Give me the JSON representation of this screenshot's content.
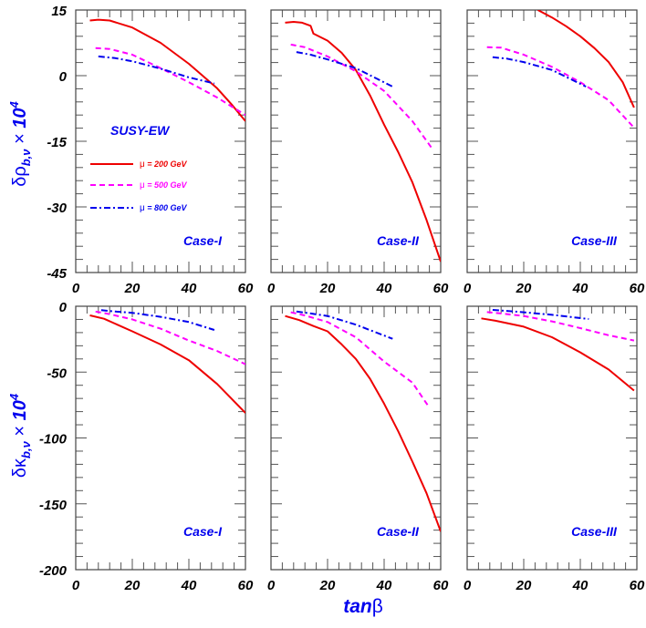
{
  "xlabel": {
    "main": "tan",
    "greek": "β"
  },
  "annotation": "SUSY-EW",
  "legend": [
    {
      "label_greek": "μ",
      "label": " = 200 GeV",
      "color": "#ee0000",
      "style": "solid"
    },
    {
      "label_greek": "μ",
      "label": " = 500 GeV",
      "color": "#ff00ff",
      "style": "dashed"
    },
    {
      "label_greek": "μ",
      "label": " = 800 GeV",
      "color": "#0000ee",
      "style": "dashdot"
    }
  ],
  "ylabels": [
    {
      "sym": "δρ",
      "sub": "b,ν",
      "times": " × ",
      "pow": "10",
      "exp": "4"
    },
    {
      "sym": "δκ",
      "sub": "b,ν",
      "times": " × ",
      "pow": "10",
      "exp": "4"
    }
  ],
  "chart_data": [
    {
      "type": "line",
      "title": "Case-I",
      "row": 0,
      "col": 0,
      "xlim": [
        0,
        60
      ],
      "ylim": [
        -45,
        15
      ],
      "xticks": [
        "0",
        "20",
        "40",
        "60"
      ],
      "yticks": [
        "15",
        "0",
        "-15",
        "-30",
        "-45"
      ],
      "series": [
        {
          "name": "μ = 200 GeV",
          "x": [
            5,
            8,
            12,
            20,
            30,
            40,
            50,
            55,
            60
          ],
          "y": [
            12.6,
            12.8,
            12.6,
            11.0,
            7.5,
            2.7,
            -2.9,
            -6.5,
            -10.4
          ]
        },
        {
          "name": "μ = 500 GeV",
          "x": [
            7,
            12,
            20,
            30,
            40,
            50,
            60
          ],
          "y": [
            6.3,
            6.1,
            4.8,
            1.7,
            -1.5,
            -5,
            -9
          ]
        },
        {
          "name": "μ = 800 GeV",
          "x": [
            8,
            14,
            20,
            30,
            40,
            49
          ],
          "y": [
            4.4,
            4.0,
            3.3,
            1.6,
            -0.4,
            -1.8
          ]
        }
      ]
    },
    {
      "type": "line",
      "title": "Case-II",
      "row": 0,
      "col": 1,
      "xlim": [
        0,
        60
      ],
      "ylim": [
        -45,
        15
      ],
      "xticks": [
        "0",
        "20",
        "40",
        "60"
      ],
      "yticks": [],
      "series": [
        {
          "name": "μ = 200 GeV",
          "x": [
            5,
            8,
            11,
            14,
            15,
            20,
            25,
            30,
            35,
            40,
            45,
            50,
            55,
            60
          ],
          "y": [
            12.1,
            12.3,
            12.1,
            11.4,
            9.6,
            8.0,
            5.2,
            1.3,
            -4.5,
            -11.2,
            -17.5,
            -24.4,
            -33,
            -42.5
          ]
        },
        {
          "name": "μ = 500 GeV",
          "x": [
            7,
            12,
            20,
            30,
            40,
            50,
            57
          ],
          "y": [
            7.1,
            6.5,
            4.4,
            1.0,
            -3.5,
            -10.4,
            -16.7
          ]
        },
        {
          "name": "μ = 800 GeV",
          "x": [
            9,
            14,
            20,
            30,
            43
          ],
          "y": [
            5.4,
            4.8,
            3.7,
            1.7,
            -2.5
          ]
        }
      ]
    },
    {
      "type": "line",
      "title": "Case-III",
      "row": 0,
      "col": 2,
      "xlim": [
        0,
        60
      ],
      "ylim": [
        -45,
        15
      ],
      "xticks": [
        "0",
        "20",
        "40",
        "60"
      ],
      "yticks": [],
      "series": [
        {
          "name": "μ = 200 GeV",
          "x": [
            25,
            30,
            35,
            40,
            45,
            50,
            55,
            59
          ],
          "y": [
            15,
            13.3,
            11.3,
            9.0,
            6.3,
            3.1,
            -1.5,
            -7.3
          ]
        },
        {
          "name": "μ = 500 GeV",
          "x": [
            7,
            12,
            20,
            30,
            40,
            50,
            59
          ],
          "y": [
            6.5,
            6.4,
            4.8,
            2.0,
            -1.5,
            -5.6,
            -11.9
          ]
        },
        {
          "name": "μ = 800 GeV",
          "x": [
            9,
            14,
            20,
            30,
            42
          ],
          "y": [
            4.2,
            3.9,
            3.1,
            1.3,
            -2.5
          ]
        }
      ]
    },
    {
      "type": "line",
      "title": "Case-I",
      "row": 1,
      "col": 0,
      "xlim": [
        0,
        60
      ],
      "ylim": [
        -200,
        0
      ],
      "xticks": [
        "0",
        "20",
        "40",
        "60"
      ],
      "yticks": [
        "0",
        "-50",
        "-100",
        "-150",
        "-200"
      ],
      "series": [
        {
          "name": "μ = 200 GeV",
          "x": [
            5,
            10,
            20,
            30,
            40,
            50,
            60
          ],
          "y": [
            -6.9,
            -9.5,
            -19,
            -29,
            -41,
            -59,
            -81
          ]
        },
        {
          "name": "μ = 500 GeV",
          "x": [
            7,
            12,
            20,
            30,
            40,
            50,
            60
          ],
          "y": [
            -4,
            -6,
            -10,
            -17,
            -26,
            -34,
            -44
          ]
        },
        {
          "name": "μ = 800 GeV",
          "x": [
            9,
            14,
            20,
            30,
            40,
            49
          ],
          "y": [
            -3,
            -4,
            -5,
            -8,
            -12,
            -18
          ]
        }
      ]
    },
    {
      "type": "line",
      "title": "Case-II",
      "row": 1,
      "col": 1,
      "xlim": [
        0,
        60
      ],
      "ylim": [
        -200,
        0
      ],
      "xticks": [
        "0",
        "20",
        "40",
        "60"
      ],
      "yticks": [],
      "series": [
        {
          "name": "μ = 200 GeV",
          "x": [
            5,
            10,
            15,
            20,
            25,
            30,
            35,
            40,
            45,
            50,
            55,
            60
          ],
          "y": [
            -7.4,
            -10.5,
            -15,
            -19,
            -29,
            -40,
            -55,
            -74,
            -95,
            -118,
            -142,
            -171
          ]
        },
        {
          "name": "μ = 500 GeV",
          "x": [
            7,
            12,
            20,
            30,
            40,
            50,
            56
          ],
          "y": [
            -4.6,
            -7,
            -12,
            -23.5,
            -42,
            -58,
            -77
          ]
        },
        {
          "name": "μ = 800 GeV",
          "x": [
            9,
            14,
            20,
            30,
            43
          ],
          "y": [
            -4,
            -5.5,
            -7.4,
            -14,
            -24.7
          ]
        }
      ]
    },
    {
      "type": "line",
      "title": "Case-III",
      "row": 1,
      "col": 2,
      "xlim": [
        0,
        60
      ],
      "ylim": [
        -200,
        0
      ],
      "xticks": [
        "0",
        "20",
        "40",
        "60"
      ],
      "yticks": [],
      "series": [
        {
          "name": "μ = 200 GeV",
          "x": [
            5,
            10,
            20,
            30,
            40,
            50,
            59
          ],
          "y": [
            -9.2,
            -11,
            -15.5,
            -23.5,
            -35,
            -48,
            -64
          ]
        },
        {
          "name": "μ = 500 GeV",
          "x": [
            7,
            12,
            20,
            30,
            40,
            50,
            59
          ],
          "y": [
            -4.4,
            -5.5,
            -7.4,
            -11.5,
            -16.6,
            -22,
            -26
          ]
        },
        {
          "name": "μ = 800 GeV",
          "x": [
            9,
            14,
            20,
            30,
            43
          ],
          "y": [
            -2.8,
            -3.5,
            -4.6,
            -6.5,
            -9.7
          ]
        }
      ]
    }
  ]
}
